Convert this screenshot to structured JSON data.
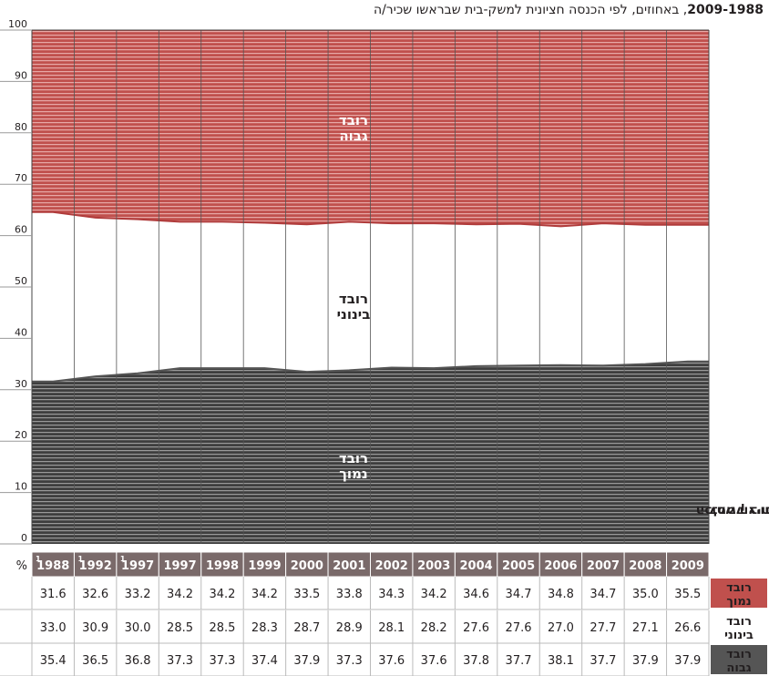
{
  "title": {
    "years": "2009-1988",
    "text": ", באחוזים, לפי הכנסה חציונית למשק-בית שבראשו שכיר/ה"
  },
  "side_title": {
    "line1": "הכנסה חציונית",
    "line2": "למשק בית"
  },
  "units_label": "%",
  "colors": {
    "high": "#b03b3b",
    "high_fill": "#c0504d",
    "middle": "#ffffff",
    "low": "#555555",
    "low_fill": "#3e3e3e",
    "header_bg": "#7a6a6a",
    "row_label_low_bg": "#c0504d",
    "row_label_high_bg": "#555555"
  },
  "area_labels": {
    "high": [
      "רובד",
      "גבוה"
    ],
    "middle": [
      "רובד",
      "בינוני"
    ],
    "low": [
      "רובד",
      "נמוך"
    ]
  },
  "chart_data": {
    "type": "area",
    "stacked": true,
    "x": [
      "1988",
      "1992",
      "1997",
      "1997",
      "1998",
      "1999",
      "2000",
      "2001",
      "2002",
      "2003",
      "2004",
      "2005",
      "2006",
      "2007",
      "2008",
      "2009"
    ],
    "x_footnotes": [
      "1",
      "1",
      "1",
      "",
      "",
      "",
      "",
      "",
      "",
      "",
      "",
      "",
      "",
      "",
      "",
      ""
    ],
    "ylim": [
      0,
      100
    ],
    "yticks": [
      0,
      10,
      20,
      30,
      40,
      50,
      60,
      70,
      80,
      90,
      100
    ],
    "ylabel": "%",
    "grid": true,
    "series": [
      {
        "name": "רובד נמוך",
        "key": "low",
        "values": [
          31.6,
          32.6,
          33.2,
          34.2,
          34.2,
          34.2,
          33.5,
          33.8,
          34.3,
          34.2,
          34.6,
          34.7,
          34.8,
          34.7,
          35.0,
          35.5
        ]
      },
      {
        "name": "רובד בינוני",
        "key": "middle",
        "values": [
          33.0,
          30.9,
          30.0,
          28.5,
          28.5,
          28.3,
          28.7,
          28.9,
          28.1,
          28.2,
          27.6,
          27.6,
          27.0,
          27.7,
          27.1,
          26.6
        ]
      },
      {
        "name": "רובד גבוה",
        "key": "high",
        "values": [
          35.4,
          36.5,
          36.8,
          37.3,
          37.3,
          37.4,
          37.9,
          37.3,
          37.6,
          37.6,
          37.8,
          37.7,
          38.1,
          37.7,
          37.9,
          37.9
        ]
      }
    ]
  },
  "table": {
    "rows": [
      {
        "key": "low",
        "label": [
          "רובד",
          "נמוך"
        ],
        "values": [
          "31.6",
          "32.6",
          "33.2",
          "34.2",
          "34.2",
          "34.2",
          "33.5",
          "33.8",
          "34.3",
          "34.2",
          "34.6",
          "34.7",
          "34.8",
          "34.7",
          "35.0",
          "35.5"
        ]
      },
      {
        "key": "middle",
        "label": [
          "רובד",
          "בינוני"
        ],
        "values": [
          "33.0",
          "30.9",
          "30.0",
          "28.5",
          "28.5",
          "28.3",
          "28.7",
          "28.9",
          "28.1",
          "28.2",
          "27.6",
          "27.6",
          "27.0",
          "27.7",
          "27.1",
          "26.6"
        ]
      },
      {
        "key": "high",
        "label": [
          "רובד",
          "גבוה"
        ],
        "values": [
          "35.4",
          "36.5",
          "36.8",
          "37.3",
          "37.3",
          "37.4",
          "37.9",
          "37.3",
          "37.6",
          "37.6",
          "37.8",
          "37.7",
          "38.1",
          "37.7",
          "37.9",
          "37.9"
        ]
      }
    ]
  }
}
